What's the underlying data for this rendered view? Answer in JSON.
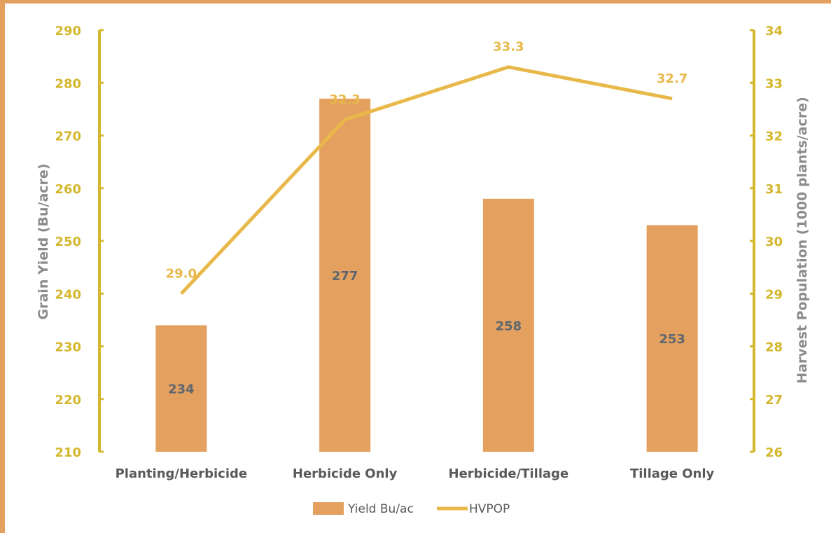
{
  "chart_data": {
    "type": "bar",
    "categories": [
      "Planting/Herbicide",
      "Herbicide Only",
      "Herbicide/Tillage",
      "Tillage Only"
    ],
    "series": [
      {
        "name": "Yield Bu/ac",
        "type": "bar",
        "axis": "left",
        "values": [
          234,
          277,
          258,
          253
        ],
        "labels": [
          "234",
          "277",
          "258",
          "253"
        ],
        "color": "#E3A05E"
      },
      {
        "name": "HVPOP",
        "type": "line",
        "axis": "right",
        "values": [
          29.0,
          32.3,
          33.3,
          32.7
        ],
        "labels": [
          "29.0",
          "32.3",
          "33.3",
          "32.7"
        ],
        "color": "#E8B94A"
      }
    ],
    "ylabel": "Grain Yield (Bu/acre)",
    "y2label": "Harvest Population (1000 plants/acre)",
    "ylim": [
      210,
      290
    ],
    "yticks": [
      210,
      220,
      230,
      240,
      250,
      260,
      270,
      280,
      290
    ],
    "y2lim": [
      26,
      34
    ],
    "y2ticks": [
      26,
      27,
      28,
      29,
      30,
      31,
      32,
      33,
      34
    ],
    "grid": false,
    "legend": "bottom",
    "colors": {
      "axis_tick": "#D4B72C",
      "axis_label": "#8C8C8C",
      "bar_label": "#5E6770",
      "line_label": "#E8B94A",
      "category": "#595959",
      "frame": "#E3A05E"
    }
  }
}
